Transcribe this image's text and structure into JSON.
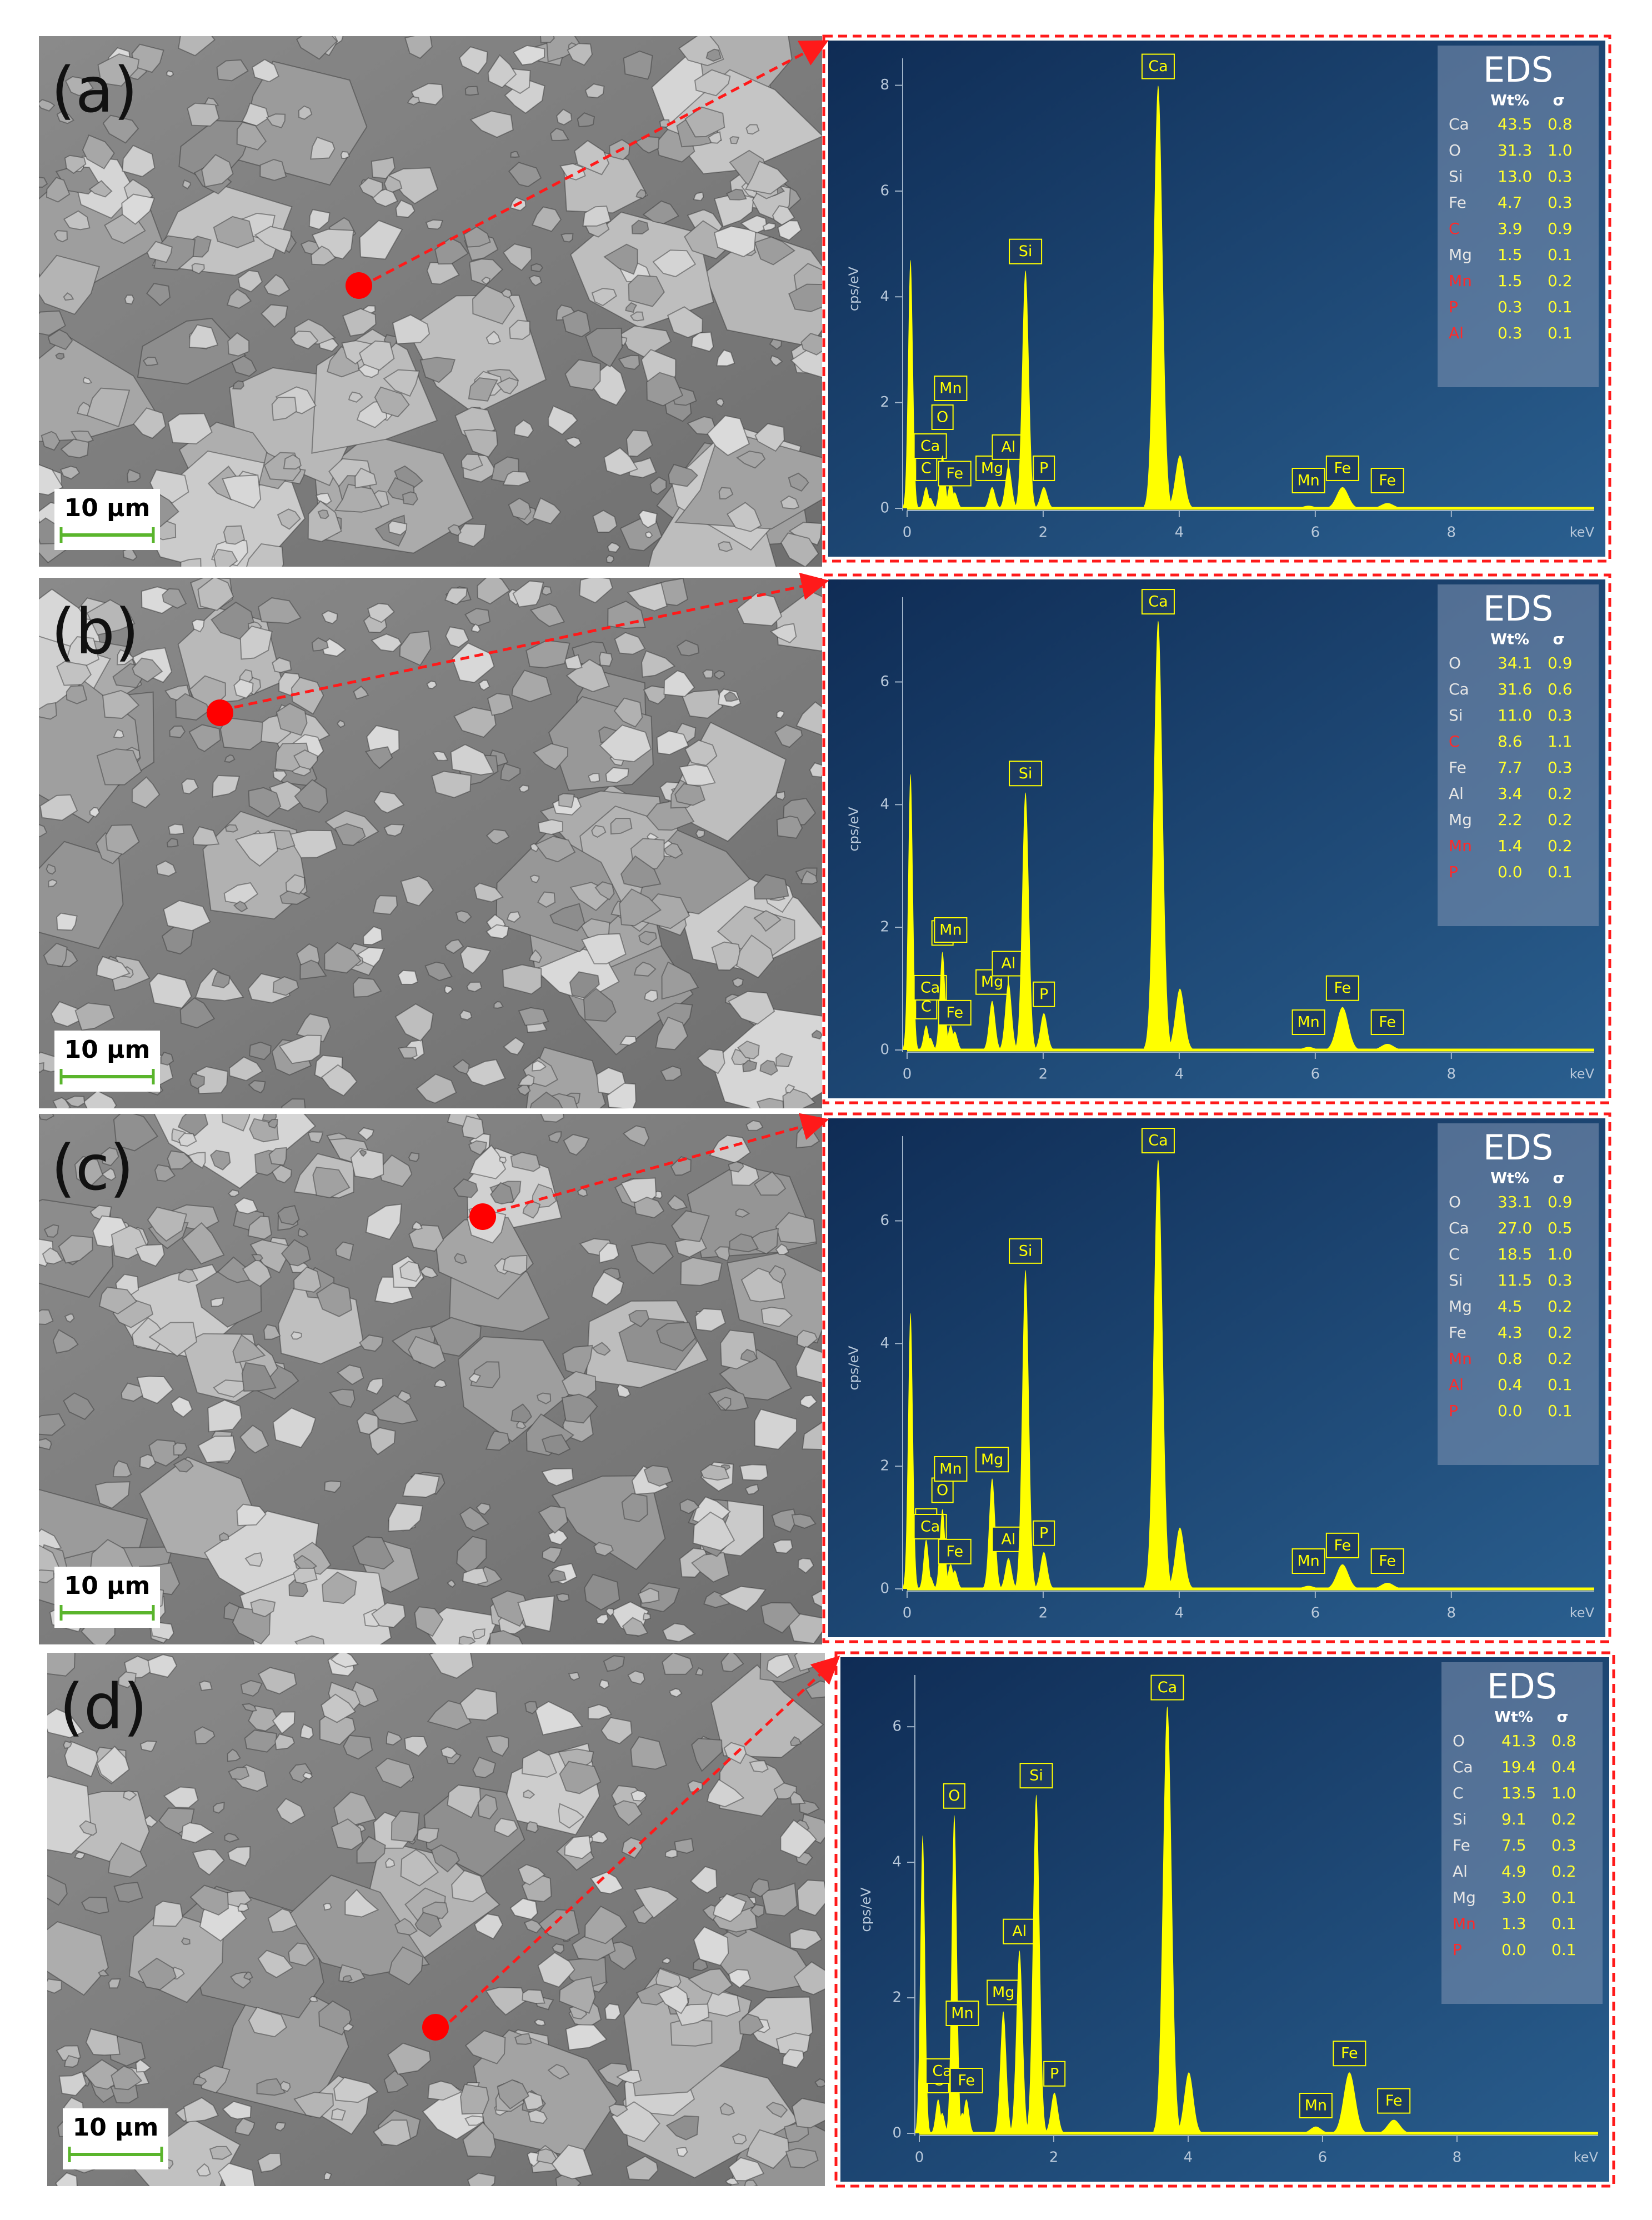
{
  "panels": [
    {
      "label": "(a)",
      "scale_bar": "10 µm",
      "spectrum": {
        "type": "line",
        "y_label": "cps/eV",
        "x_label": "keV",
        "xlim": [
          0,
          10.1
        ],
        "ylim": [
          0,
          8.3
        ],
        "xticks": [
          0,
          2,
          4,
          6,
          8
        ],
        "yticks": [
          0,
          2,
          4,
          6,
          8
        ],
        "color": "#ffff00",
        "peaks": [
          {
            "label": null,
            "x": 0.05,
            "y": 4.7
          },
          {
            "label": "C",
            "x": 0.28,
            "y": 0.4
          },
          {
            "label": "Ca",
            "x": 0.34,
            "y": 0.2
          },
          {
            "label": "O",
            "x": 0.52,
            "y": 1.0
          },
          {
            "label": "Mn",
            "x": 0.64,
            "y": 0.5
          },
          {
            "label": "Fe",
            "x": 0.7,
            "y": 0.3
          },
          {
            "label": "Mg",
            "x": 1.25,
            "y": 0.4
          },
          {
            "label": "Al",
            "x": 1.49,
            "y": 0.8
          },
          {
            "label": "Si",
            "x": 1.74,
            "y": 4.5
          },
          {
            "label": "P",
            "x": 2.01,
            "y": 0.4
          },
          {
            "label": "Ca",
            "x": 3.69,
            "y": 8.0
          },
          {
            "label": null,
            "x": 4.01,
            "y": 1.0
          },
          {
            "label": "Mn",
            "x": 5.9,
            "y": 0.05
          },
          {
            "label": "Fe",
            "x": 6.4,
            "y": 0.4
          },
          {
            "label": "Fe",
            "x": 7.06,
            "y": 0.1
          }
        ]
      },
      "eds": {
        "title": "EDS",
        "headers": [
          "Wt%",
          "σ"
        ],
        "rows": [
          {
            "element": "Ca",
            "wt": "43.5",
            "sigma": "0.8",
            "color": "#e6e6e6"
          },
          {
            "element": "O",
            "wt": "31.3",
            "sigma": "1.0",
            "color": "#e6e6e6"
          },
          {
            "element": "Si",
            "wt": "13.0",
            "sigma": "0.3",
            "color": "#e6e6e6"
          },
          {
            "element": "Fe",
            "wt": "4.7",
            "sigma": "0.3",
            "color": "#e6e6e6"
          },
          {
            "element": "C",
            "wt": "3.9",
            "sigma": "0.9",
            "color": "#ff2a2a"
          },
          {
            "element": "Mg",
            "wt": "1.5",
            "sigma": "0.1",
            "color": "#e6e6e6"
          },
          {
            "element": "Mn",
            "wt": "1.5",
            "sigma": "0.2",
            "color": "#ff2a2a"
          },
          {
            "element": "P",
            "wt": "0.3",
            "sigma": "0.1",
            "color": "#ff2a2a"
          },
          {
            "element": "Al",
            "wt": "0.3",
            "sigma": "0.1",
            "color": "#ff2a2a"
          }
        ]
      }
    },
    {
      "label": "(b)",
      "scale_bar": "10 µm",
      "spectrum": {
        "type": "line",
        "y_label": "cps/eV",
        "x_label": "keV",
        "xlim": [
          0,
          10.1
        ],
        "ylim": [
          0,
          7.2
        ],
        "xticks": [
          0,
          2,
          4,
          6,
          8
        ],
        "yticks": [
          0,
          2,
          4,
          6
        ],
        "color": "#ffff00",
        "peaks": [
          {
            "label": null,
            "x": 0.05,
            "y": 4.5
          },
          {
            "label": "C",
            "x": 0.28,
            "y": 0.4
          },
          {
            "label": "Ca",
            "x": 0.34,
            "y": 0.2
          },
          {
            "label": "O",
            "x": 0.52,
            "y": 1.6
          },
          {
            "label": "Mn",
            "x": 0.64,
            "y": 0.4
          },
          {
            "label": "Fe",
            "x": 0.7,
            "y": 0.3
          },
          {
            "label": "Mg",
            "x": 1.25,
            "y": 0.8
          },
          {
            "label": "Al",
            "x": 1.49,
            "y": 1.1
          },
          {
            "label": "Si",
            "x": 1.74,
            "y": 4.2
          },
          {
            "label": "P",
            "x": 2.01,
            "y": 0.6
          },
          {
            "label": "Ca",
            "x": 3.69,
            "y": 7.0
          },
          {
            "label": null,
            "x": 4.01,
            "y": 1.0
          },
          {
            "label": "Mn",
            "x": 5.9,
            "y": 0.05
          },
          {
            "label": "Fe",
            "x": 6.4,
            "y": 0.7
          },
          {
            "label": "Fe",
            "x": 7.06,
            "y": 0.1
          }
        ]
      },
      "eds": {
        "title": "EDS",
        "headers": [
          "Wt%",
          "σ"
        ],
        "rows": [
          {
            "element": "O",
            "wt": "34.1",
            "sigma": "0.9",
            "color": "#e6e6e6"
          },
          {
            "element": "Ca",
            "wt": "31.6",
            "sigma": "0.6",
            "color": "#e6e6e6"
          },
          {
            "element": "Si",
            "wt": "11.0",
            "sigma": "0.3",
            "color": "#e6e6e6"
          },
          {
            "element": "C",
            "wt": "8.6",
            "sigma": "1.1",
            "color": "#ff2a2a"
          },
          {
            "element": "Fe",
            "wt": "7.7",
            "sigma": "0.3",
            "color": "#e6e6e6"
          },
          {
            "element": "Al",
            "wt": "3.4",
            "sigma": "0.2",
            "color": "#e6e6e6"
          },
          {
            "element": "Mg",
            "wt": "2.2",
            "sigma": "0.2",
            "color": "#e6e6e6"
          },
          {
            "element": "Mn",
            "wt": "1.4",
            "sigma": "0.2",
            "color": "#ff2a2a"
          },
          {
            "element": "P",
            "wt": "0.0",
            "sigma": "0.1",
            "color": "#ff2a2a"
          }
        ]
      }
    },
    {
      "label": "(c)",
      "scale_bar": "10 µm",
      "spectrum": {
        "type": "line",
        "y_label": "cps/eV",
        "x_label": "keV",
        "xlim": [
          0,
          10.1
        ],
        "ylim": [
          0,
          7.2
        ],
        "xticks": [
          0,
          2,
          4,
          6,
          8
        ],
        "yticks": [
          0,
          2,
          4,
          6
        ],
        "color": "#ffff00",
        "peaks": [
          {
            "label": null,
            "x": 0.05,
            "y": 4.5
          },
          {
            "label": "C",
            "x": 0.28,
            "y": 0.8
          },
          {
            "label": "Ca",
            "x": 0.34,
            "y": 0.2
          },
          {
            "label": "O",
            "x": 0.52,
            "y": 1.3
          },
          {
            "label": "Mn",
            "x": 0.64,
            "y": 0.4
          },
          {
            "label": "Fe",
            "x": 0.7,
            "y": 0.3
          },
          {
            "label": "Mg",
            "x": 1.25,
            "y": 1.8
          },
          {
            "label": "Al",
            "x": 1.49,
            "y": 0.5
          },
          {
            "label": "Si",
            "x": 1.74,
            "y": 5.2
          },
          {
            "label": "P",
            "x": 2.01,
            "y": 0.6
          },
          {
            "label": "Ca",
            "x": 3.69,
            "y": 7.0
          },
          {
            "label": null,
            "x": 4.01,
            "y": 1.0
          },
          {
            "label": "Mn",
            "x": 5.9,
            "y": 0.05
          },
          {
            "label": "Fe",
            "x": 6.4,
            "y": 0.4
          },
          {
            "label": "Fe",
            "x": 7.06,
            "y": 0.1
          }
        ]
      },
      "eds": {
        "title": "EDS",
        "headers": [
          "Wt%",
          "σ"
        ],
        "rows": [
          {
            "element": "O",
            "wt": "33.1",
            "sigma": "0.9",
            "color": "#e6e6e6"
          },
          {
            "element": "Ca",
            "wt": "27.0",
            "sigma": "0.5",
            "color": "#e6e6e6"
          },
          {
            "element": "C",
            "wt": "18.5",
            "sigma": "1.0",
            "color": "#e6e6e6"
          },
          {
            "element": "Si",
            "wt": "11.5",
            "sigma": "0.3",
            "color": "#e6e6e6"
          },
          {
            "element": "Mg",
            "wt": "4.5",
            "sigma": "0.2",
            "color": "#e6e6e6"
          },
          {
            "element": "Fe",
            "wt": "4.3",
            "sigma": "0.2",
            "color": "#e6e6e6"
          },
          {
            "element": "Mn",
            "wt": "0.8",
            "sigma": "0.2",
            "color": "#ff2a2a"
          },
          {
            "element": "Al",
            "wt": "0.4",
            "sigma": "0.1",
            "color": "#ff2a2a"
          },
          {
            "element": "P",
            "wt": "0.0",
            "sigma": "0.1",
            "color": "#ff2a2a"
          }
        ]
      }
    },
    {
      "label": "(d)",
      "scale_bar": "10 µm",
      "spectrum": {
        "type": "line",
        "y_label": "cps/eV",
        "x_label": "keV",
        "xlim": [
          0,
          10.1
        ],
        "ylim": [
          0,
          6.6
        ],
        "xticks": [
          0,
          2,
          4,
          6,
          8
        ],
        "yticks": [
          0,
          2,
          4,
          6
        ],
        "color": "#ffff00",
        "peaks": [
          {
            "label": null,
            "x": 0.05,
            "y": 4.4
          },
          {
            "label": "C",
            "x": 0.28,
            "y": 0.5
          },
          {
            "label": "Ca",
            "x": 0.34,
            "y": 0.3
          },
          {
            "label": "O",
            "x": 0.52,
            "y": 4.7
          },
          {
            "label": "Mn",
            "x": 0.64,
            "y": 0.3
          },
          {
            "label": "Fe",
            "x": 0.7,
            "y": 0.5
          },
          {
            "label": "Mg",
            "x": 1.25,
            "y": 1.8
          },
          {
            "label": "Al",
            "x": 1.49,
            "y": 2.7
          },
          {
            "label": "Si",
            "x": 1.74,
            "y": 5.0
          },
          {
            "label": "P",
            "x": 2.01,
            "y": 0.6
          },
          {
            "label": "Ca",
            "x": 3.69,
            "y": 6.3
          },
          {
            "label": null,
            "x": 4.01,
            "y": 0.9
          },
          {
            "label": "Mn",
            "x": 5.9,
            "y": 0.1
          },
          {
            "label": "Fe",
            "x": 6.4,
            "y": 0.9
          },
          {
            "label": "Fe",
            "x": 7.06,
            "y": 0.2
          }
        ]
      },
      "eds": {
        "title": "EDS",
        "headers": [
          "Wt%",
          "σ"
        ],
        "rows": [
          {
            "element": "O",
            "wt": "41.3",
            "sigma": "0.8",
            "color": "#e6e6e6"
          },
          {
            "element": "Ca",
            "wt": "19.4",
            "sigma": "0.4",
            "color": "#e6e6e6"
          },
          {
            "element": "C",
            "wt": "13.5",
            "sigma": "1.0",
            "color": "#e6e6e6"
          },
          {
            "element": "Si",
            "wt": "9.1",
            "sigma": "0.2",
            "color": "#e6e6e6"
          },
          {
            "element": "Fe",
            "wt": "7.5",
            "sigma": "0.3",
            "color": "#e6e6e6"
          },
          {
            "element": "Al",
            "wt": "4.9",
            "sigma": "0.2",
            "color": "#e6e6e6"
          },
          {
            "element": "Mg",
            "wt": "3.0",
            "sigma": "0.1",
            "color": "#e6e6e6"
          },
          {
            "element": "Mn",
            "wt": "1.3",
            "sigma": "0.1",
            "color": "#ff2a2a"
          },
          {
            "element": "P",
            "wt": "0.0",
            "sigma": "0.1",
            "color": "#ff2a2a"
          }
        ]
      }
    }
  ]
}
